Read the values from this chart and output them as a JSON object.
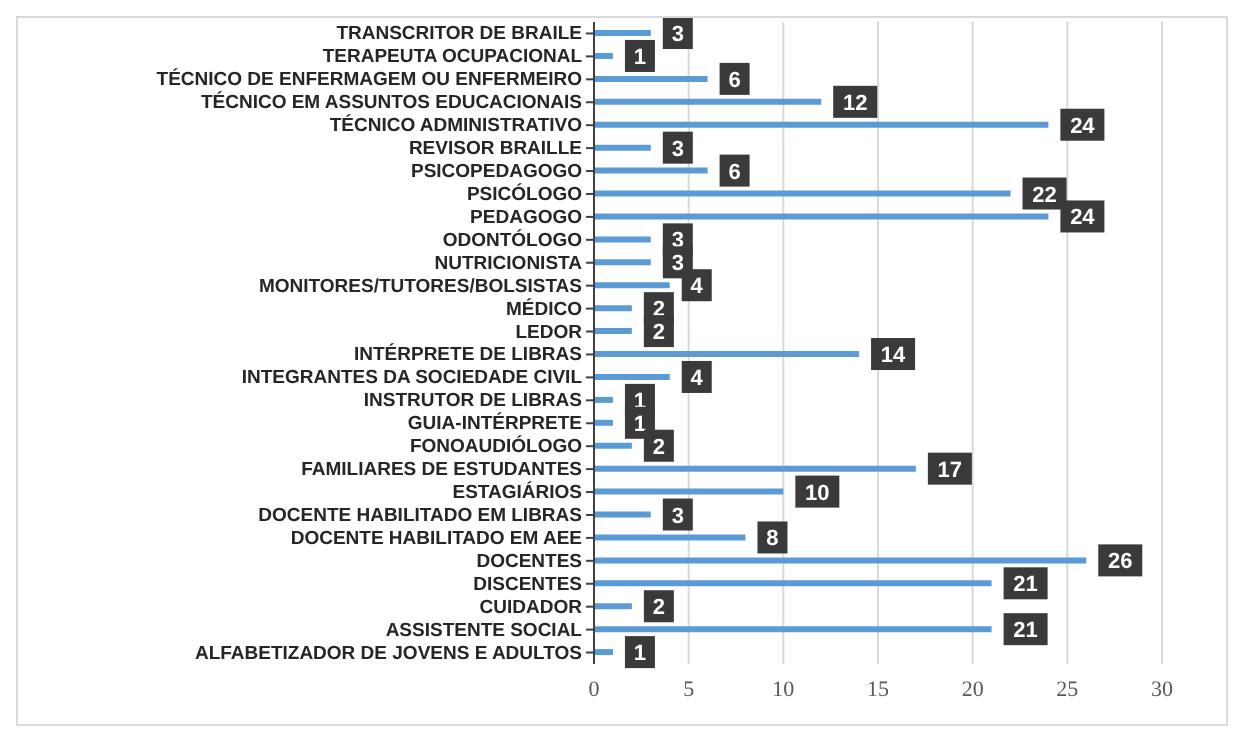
{
  "chart_data": {
    "type": "bar",
    "orientation": "horizontal",
    "categories": [
      "TRANSCRITOR DE BRAILE",
      "TERAPEUTA OCUPACIONAL",
      "TÉCNICO DE ENFERMAGEM OU ENFERMEIRO",
      "TÉCNICO EM ASSUNTOS EDUCACIONAIS",
      "TÉCNICO ADMINISTRATIVO",
      "REVISOR BRAILLE",
      "PSICOPEDAGOGO",
      "PSICÓLOGO",
      "PEDAGOGO",
      "ODONTÓLOGO",
      "NUTRICIONISTA",
      "MONITORES/TUTORES/BOLSISTAS",
      "MÉDICO",
      "LEDOR",
      "INTÉRPRETE DE LIBRAS",
      "INTEGRANTES DA SOCIEDADE CIVIL",
      "INSTRUTOR DE LIBRAS",
      "GUIA-INTÉRPRETE",
      "FONOAUDIÓLOGO",
      "FAMILIARES DE ESTUDANTES",
      "ESTAGIÁRIOS",
      "DOCENTE HABILITADO EM LIBRAS",
      "DOCENTE HABILITADO EM AEE",
      "DOCENTES",
      "DISCENTES",
      "CUIDADOR",
      "ASSISTENTE SOCIAL",
      "ALFABETIZADOR DE JOVENS E ADULTOS"
    ],
    "values": [
      3,
      1,
      6,
      12,
      24,
      3,
      6,
      22,
      24,
      3,
      3,
      4,
      2,
      2,
      14,
      4,
      1,
      1,
      2,
      17,
      10,
      3,
      8,
      26,
      21,
      2,
      21,
      1
    ],
    "color": "#5b9bd5",
    "xlim": [
      0,
      30
    ],
    "xticks": [
      0,
      5,
      10,
      15,
      20,
      25,
      30
    ],
    "grid": "x",
    "data_labels": true
  }
}
